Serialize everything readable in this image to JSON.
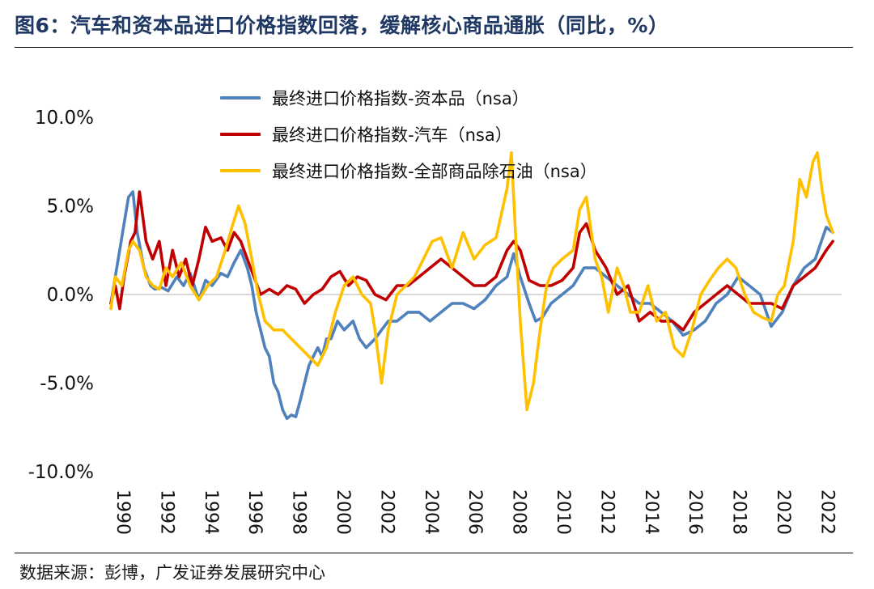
{
  "header": {
    "title": "图6：汽车和资本品进口价格指数回落，缓解核心商品通胀（同比，%）"
  },
  "footer": {
    "source": "数据来源：彭博，广发证券发展研究中心"
  },
  "colors": {
    "capital": "#4f81bd",
    "autos": "#c00000",
    "ex_oil": "#ffc000"
  },
  "chart_data": {
    "type": "line",
    "title": "汽车和资本品进口价格指数回落，缓解核心商品通胀（同比，%）",
    "xlabel": "",
    "ylabel": "",
    "xlim": [
      1990,
      2023.2
    ],
    "ylim": [
      -10,
      10
    ],
    "yticks": [
      -10,
      -5,
      0,
      5,
      10
    ],
    "ytick_labels": [
      "-10.0%",
      "-5.0%",
      "0.0%",
      "5.0%",
      "10.0%"
    ],
    "xtick_labels": [
      "1990",
      "1992",
      "1994",
      "1996",
      "1998",
      "2000",
      "2002",
      "2004",
      "2006",
      "2008",
      "2010",
      "2012",
      "2014",
      "2016",
      "2018",
      "2020",
      "2022"
    ],
    "legend_position": "top-left",
    "series": [
      {
        "name": "最终进口价格指数-资本品（nsa）",
        "color": "#4f81bd",
        "x": [
          1990,
          1990.2,
          1990.4,
          1990.6,
          1990.8,
          1991,
          1991.2,
          1991.5,
          1991.8,
          1992,
          1992.3,
          1992.6,
          1993,
          1993.3,
          1993.6,
          1994,
          1994.3,
          1994.6,
          1995,
          1995.3,
          1995.6,
          1995.9,
          1996.2,
          1996.4,
          1996.6,
          1996.8,
          1997,
          1997.2,
          1997.4,
          1997.6,
          1997.8,
          1998,
          1998.2,
          1998.4,
          1998.6,
          1998.8,
          1999,
          1999.2,
          1999.4,
          1999.6,
          1999.8,
          2000,
          2000.3,
          2000.6,
          2001,
          2001.3,
          2001.6,
          2002,
          2002.3,
          2002.6,
          2003,
          2003.5,
          2004,
          2004.5,
          2005,
          2005.5,
          2006,
          2006.5,
          2007,
          2007.5,
          2008,
          2008.3,
          2008.6,
          2009,
          2009.3,
          2009.6,
          2010,
          2010.5,
          2011,
          2011.5,
          2012,
          2012.5,
          2013,
          2013.5,
          2014,
          2014.5,
          2015,
          2015.5,
          2016,
          2016.5,
          2017,
          2017.5,
          2018,
          2018.5,
          2019,
          2019.5,
          2020,
          2020.5,
          2021,
          2021.5,
          2022,
          2022.5,
          2022.8
        ],
        "values": [
          -0.5,
          1.0,
          2.5,
          4.0,
          5.5,
          5.8,
          3.5,
          1.5,
          0.5,
          0.3,
          0.4,
          0.2,
          1.0,
          0.5,
          1.2,
          -0.3,
          0.8,
          0.5,
          1.2,
          1.0,
          1.8,
          2.5,
          1.5,
          0.5,
          -1.0,
          -2.0,
          -3.0,
          -3.5,
          -5.0,
          -5.5,
          -6.5,
          -7.0,
          -6.8,
          -6.9,
          -6.0,
          -5.0,
          -4.0,
          -3.5,
          -3.0,
          -3.5,
          -2.5,
          -2.5,
          -1.5,
          -2.0,
          -1.5,
          -2.5,
          -3.0,
          -2.5,
          -2.0,
          -1.5,
          -1.5,
          -1.0,
          -1.0,
          -1.5,
          -1.0,
          -0.5,
          -0.5,
          -0.8,
          -0.3,
          0.5,
          1.0,
          2.3,
          1.0,
          -0.5,
          -1.5,
          -1.3,
          -0.5,
          0.0,
          0.5,
          1.5,
          1.5,
          1.0,
          0.5,
          0.0,
          -0.5,
          -0.5,
          -1.0,
          -1.5,
          -2.3,
          -2.0,
          -1.5,
          -0.5,
          0.0,
          1.0,
          0.5,
          0.0,
          -1.8,
          -1.0,
          0.5,
          1.5,
          2.0,
          3.8,
          3.5
        ]
      },
      {
        "name": "最终进口价格指数-汽车（nsa）",
        "color": "#c00000",
        "x": [
          1990,
          1990.2,
          1990.4,
          1990.6,
          1990.9,
          1991.1,
          1991.3,
          1991.6,
          1991.9,
          1992.2,
          1992.5,
          1992.8,
          1993.1,
          1993.4,
          1993.7,
          1994,
          1994.3,
          1994.6,
          1995,
          1995.3,
          1995.6,
          1995.9,
          1996.2,
          1996.5,
          1996.8,
          1997.2,
          1997.6,
          1998,
          1998.4,
          1998.8,
          1999.2,
          1999.6,
          2000,
          2000.4,
          2000.8,
          2001.2,
          2001.6,
          2002,
          2002.5,
          2003,
          2003.5,
          2004,
          2004.5,
          2005,
          2005.5,
          2006,
          2006.5,
          2007,
          2007.5,
          2008,
          2008.3,
          2008.6,
          2009,
          2009.5,
          2010,
          2010.5,
          2011,
          2011.3,
          2011.6,
          2012,
          2012.5,
          2013,
          2013.5,
          2014,
          2014.5,
          2015,
          2015.5,
          2016,
          2016.5,
          2017,
          2017.5,
          2018,
          2018.5,
          2019,
          2019.5,
          2020,
          2020.5,
          2021,
          2021.5,
          2022,
          2022.5,
          2022.8
        ],
        "values": [
          -0.5,
          0.5,
          -0.8,
          1.0,
          3.0,
          3.5,
          5.8,
          3.0,
          2.0,
          3.0,
          0.5,
          2.5,
          1.0,
          2.0,
          0.5,
          2.0,
          3.8,
          3.0,
          3.2,
          2.5,
          3.5,
          3.0,
          2.0,
          1.0,
          0.0,
          0.3,
          0.0,
          0.5,
          0.3,
          -0.5,
          0.0,
          0.3,
          1.0,
          1.3,
          0.5,
          1.0,
          0.8,
          0.0,
          -0.3,
          0.5,
          0.5,
          1.0,
          1.5,
          2.0,
          1.5,
          1.0,
          0.5,
          0.5,
          1.0,
          2.5,
          3.0,
          2.5,
          0.8,
          0.5,
          0.5,
          0.8,
          1.5,
          3.5,
          4.0,
          2.5,
          1.5,
          0.0,
          0.5,
          -1.5,
          -1.0,
          -1.5,
          -1.5,
          -2.0,
          -1.0,
          -0.5,
          0.0,
          0.5,
          0.0,
          -0.5,
          -0.5,
          -0.5,
          -0.8,
          0.5,
          1.0,
          1.5,
          2.5,
          3.0
        ]
      },
      {
        "name": "最终进口价格指数-全部商品除石油（nsa）",
        "color": "#ffc000",
        "x": [
          1990,
          1990.2,
          1990.5,
          1990.8,
          1991,
          1991.3,
          1991.6,
          1991.9,
          1992.2,
          1992.5,
          1992.8,
          1993.2,
          1993.6,
          1994,
          1994.4,
          1994.8,
          1995.2,
          1995.5,
          1995.8,
          1996.1,
          1996.4,
          1996.7,
          1997,
          1997.4,
          1997.8,
          1998.2,
          1998.6,
          1999,
          1999.4,
          1999.8,
          2000.2,
          2000.6,
          2001,
          2001.4,
          2001.8,
          2002,
          2002.3,
          2002.6,
          2003,
          2003.4,
          2003.8,
          2004.2,
          2004.6,
          2005,
          2005.5,
          2006,
          2006.5,
          2007,
          2007.5,
          2008,
          2008.2,
          2008.4,
          2008.6,
          2008.9,
          2009.2,
          2009.5,
          2009.8,
          2010.1,
          2010.5,
          2011,
          2011.3,
          2011.6,
          2012,
          2012.3,
          2012.6,
          2013,
          2013.3,
          2013.6,
          2014,
          2014.4,
          2014.8,
          2015.2,
          2015.6,
          2016,
          2016.4,
          2016.8,
          2017.2,
          2017.6,
          2018,
          2018.4,
          2018.8,
          2019.2,
          2019.6,
          2020,
          2020.3,
          2020.6,
          2021,
          2021.3,
          2021.6,
          2021.9,
          2022.1,
          2022.3,
          2022.5,
          2022.8
        ],
        "values": [
          -0.8,
          1.0,
          0.5,
          2.5,
          3.0,
          2.5,
          1.0,
          0.5,
          0.3,
          1.5,
          1.0,
          1.8,
          0.5,
          -0.3,
          0.5,
          1.0,
          2.5,
          3.8,
          5.0,
          4.0,
          2.0,
          0.0,
          -1.5,
          -2.0,
          -2.0,
          -2.5,
          -3.0,
          -3.5,
          -4.0,
          -3.0,
          -1.0,
          0.5,
          1.0,
          0.0,
          -0.5,
          -2.0,
          -5.0,
          -2.0,
          0.0,
          0.5,
          1.0,
          2.0,
          3.0,
          3.2,
          1.5,
          3.5,
          2.0,
          2.8,
          3.2,
          6.0,
          8.0,
          3.0,
          -1.5,
          -6.5,
          -5.0,
          -2.0,
          0.5,
          1.5,
          2.0,
          2.5,
          4.8,
          5.5,
          2.0,
          1.0,
          -1.0,
          1.5,
          0.5,
          -1.0,
          -1.0,
          0.5,
          -1.5,
          -1.0,
          -3.0,
          -3.5,
          -2.0,
          0.0,
          0.8,
          1.5,
          2.0,
          1.5,
          0.0,
          -1.0,
          -1.3,
          -1.5,
          0.0,
          0.5,
          3.0,
          6.5,
          5.5,
          7.5,
          8.0,
          6.0,
          4.5,
          3.5
        ]
      }
    ]
  }
}
